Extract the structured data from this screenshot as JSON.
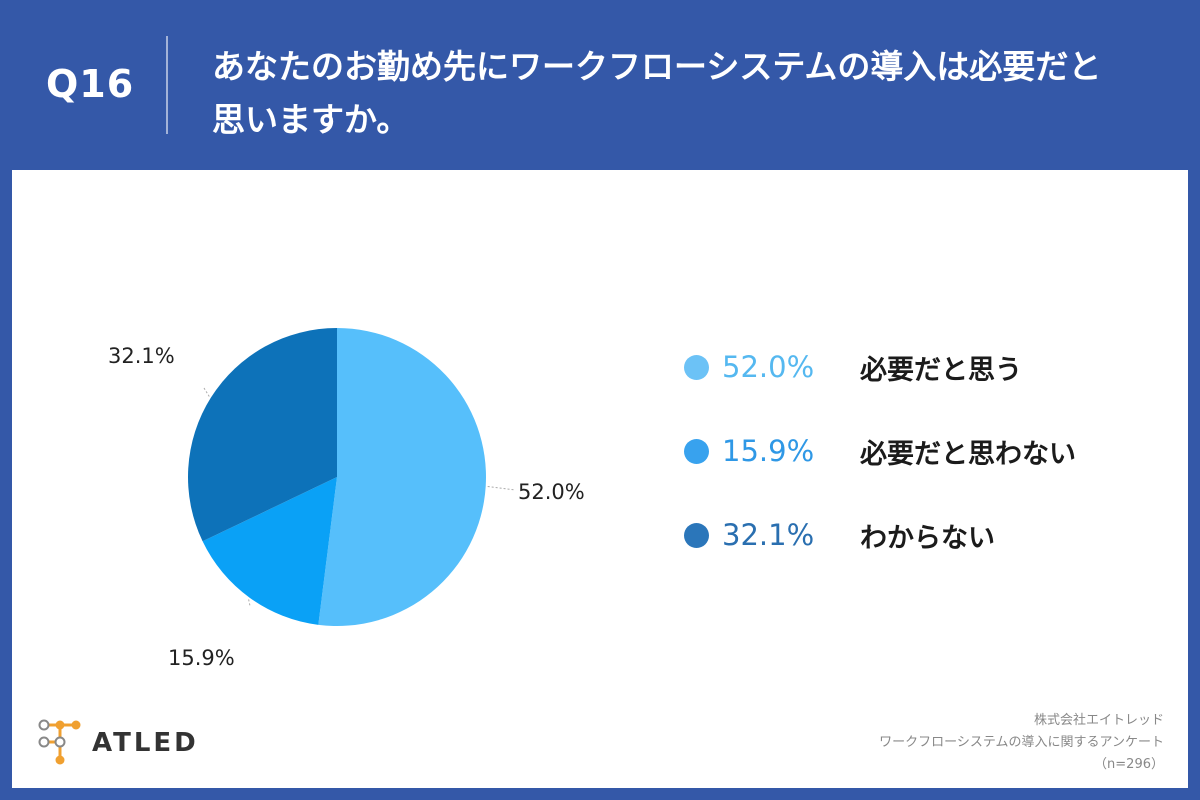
{
  "header": {
    "question_number": "Q16",
    "question_text": "あなたのお勤め先にワークフローシステムの導入は必要だと\n思いますか。"
  },
  "chart_data": {
    "type": "pie",
    "slices": [
      {
        "label": "必要だと思う",
        "value": 52.0,
        "value_label": "52.0%",
        "color": "#56BFFB"
      },
      {
        "label": "必要だと思わない",
        "value": 15.9,
        "value_label": "15.9%",
        "color": "#0AA1F6"
      },
      {
        "label": "わからない",
        "value": 32.1,
        "value_label": "32.1%",
        "color": "#0D72B9"
      }
    ],
    "legend_placement": "right"
  },
  "legend": {
    "items": [
      {
        "value_label": "52.0%",
        "label": "必要だと思う",
        "dot_color": "#6CC2F6",
        "text_color": "#55B8F0"
      },
      {
        "value_label": "15.9%",
        "label": "必要だと思わない",
        "dot_color": "#38A2EE",
        "text_color": "#2F98E6"
      },
      {
        "value_label": "32.1%",
        "label": "わからない",
        "dot_color": "#2B76BA",
        "text_color": "#2A6FB0"
      }
    ]
  },
  "logo": {
    "name": "ATLED"
  },
  "source": {
    "company": "株式会社エイトレッド",
    "survey": "ワークフローシステムの導入に関するアンケート",
    "sample": "（n=296）"
  },
  "colors": {
    "header_bg": "#3458A8",
    "panel_bg": "#FFFFFF",
    "logo_orange": "#F0A030"
  }
}
